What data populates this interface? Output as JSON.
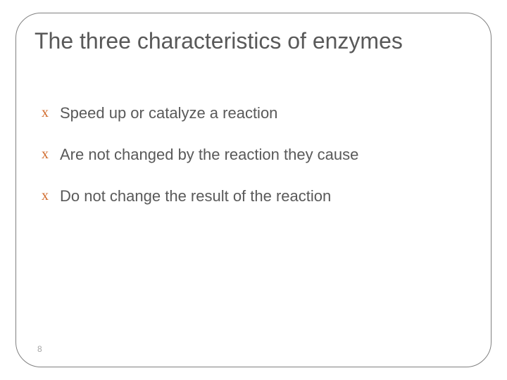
{
  "title": "The three characteristics of enzymes",
  "bullets": [
    "Speed up or catalyze a reaction",
    "Are not changed by the reaction they cause",
    "Do not change the result of the reaction"
  ],
  "bullet_glyph": "x",
  "colors": {
    "text": "#595959",
    "bullet": "#d16b2c",
    "border": "#808080",
    "page_number": "#a6a6a6",
    "background": "#ffffff"
  },
  "typography": {
    "title_fontsize": 32,
    "body_fontsize": 22,
    "page_number_fontsize": 12
  },
  "page_number": "8"
}
